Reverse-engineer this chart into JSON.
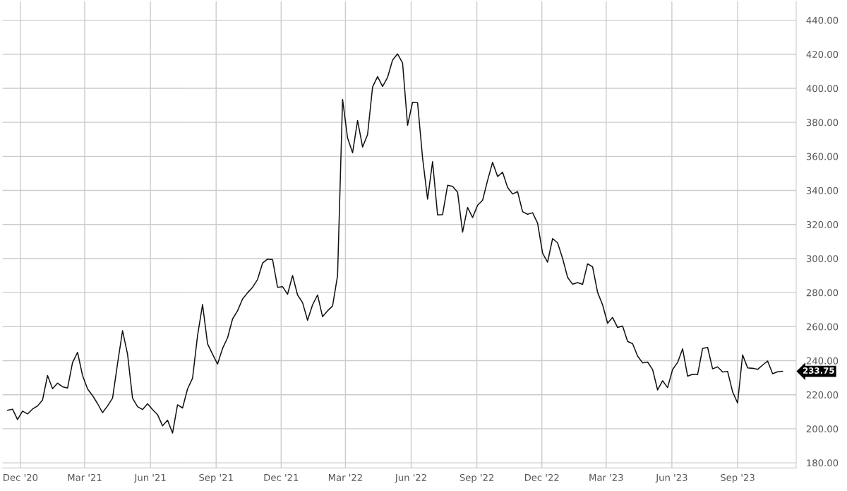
{
  "chart_data": {
    "type": "line",
    "x": [
      "2020-11-13",
      "2020-11-20",
      "2020-11-27",
      "2020-12-04",
      "2020-12-11",
      "2020-12-18",
      "2020-12-25",
      "2021-01-01",
      "2021-01-08",
      "2021-01-15",
      "2021-01-22",
      "2021-01-29",
      "2021-02-05",
      "2021-02-12",
      "2021-02-19",
      "2021-02-26",
      "2021-03-05",
      "2021-03-12",
      "2021-03-19",
      "2021-03-26",
      "2021-04-02",
      "2021-04-09",
      "2021-04-16",
      "2021-04-23",
      "2021-04-30",
      "2021-05-07",
      "2021-05-14",
      "2021-05-21",
      "2021-05-28",
      "2021-06-04",
      "2021-06-11",
      "2021-06-18",
      "2021-06-25",
      "2021-07-02",
      "2021-07-09",
      "2021-07-16",
      "2021-07-23",
      "2021-07-30",
      "2021-08-06",
      "2021-08-13",
      "2021-08-20",
      "2021-08-27",
      "2021-09-03",
      "2021-09-10",
      "2021-09-17",
      "2021-09-24",
      "2021-10-01",
      "2021-10-08",
      "2021-10-15",
      "2021-10-22",
      "2021-10-29",
      "2021-11-05",
      "2021-11-12",
      "2021-11-19",
      "2021-11-26",
      "2021-12-03",
      "2021-12-10",
      "2021-12-17",
      "2021-12-24",
      "2021-12-31",
      "2022-01-07",
      "2022-01-14",
      "2022-01-21",
      "2022-01-28",
      "2022-02-04",
      "2022-02-11",
      "2022-02-18",
      "2022-02-25",
      "2022-03-04",
      "2022-03-11",
      "2022-03-18",
      "2022-03-25",
      "2022-04-01",
      "2022-04-08",
      "2022-04-15",
      "2022-04-22",
      "2022-04-29",
      "2022-05-06",
      "2022-05-13",
      "2022-05-20",
      "2022-05-27",
      "2022-06-03",
      "2022-06-10",
      "2022-06-17",
      "2022-06-24",
      "2022-07-01",
      "2022-07-08",
      "2022-07-15",
      "2022-07-22",
      "2022-07-29",
      "2022-08-05",
      "2022-08-12",
      "2022-08-19",
      "2022-08-26",
      "2022-09-02",
      "2022-09-09",
      "2022-09-16",
      "2022-09-23",
      "2022-09-30",
      "2022-10-07",
      "2022-10-14",
      "2022-10-21",
      "2022-10-28",
      "2022-11-04",
      "2022-11-11",
      "2022-11-18",
      "2022-11-25",
      "2022-12-02",
      "2022-12-09",
      "2022-12-16",
      "2022-12-23",
      "2022-12-30",
      "2023-01-06",
      "2023-01-13",
      "2023-01-20",
      "2023-01-27",
      "2023-02-03",
      "2023-02-10",
      "2023-02-17",
      "2023-02-24",
      "2023-03-03",
      "2023-03-10",
      "2023-03-17",
      "2023-03-24",
      "2023-03-31",
      "2023-04-07",
      "2023-04-14",
      "2023-04-21",
      "2023-04-28",
      "2023-05-05",
      "2023-05-12",
      "2023-05-19",
      "2023-05-26",
      "2023-06-02",
      "2023-06-09",
      "2023-06-16",
      "2023-06-23",
      "2023-06-30",
      "2023-07-07",
      "2023-07-14",
      "2023-07-21",
      "2023-07-28",
      "2023-08-04",
      "2023-08-11",
      "2023-08-18",
      "2023-08-25",
      "2023-09-01",
      "2023-09-08",
      "2023-09-15",
      "2023-09-22",
      "2023-09-29",
      "2023-10-06",
      "2023-10-13",
      "2023-10-20",
      "2023-10-27",
      "2023-11-03"
    ],
    "series": [
      {
        "color": "#111111",
        "values": [
          210.9,
          211.5,
          205.4,
          210.4,
          208.7,
          211.6,
          213.4,
          216.9,
          231.3,
          223.5,
          226.8,
          224.7,
          223.9,
          238.9,
          244.9,
          231.3,
          223.4,
          219.5,
          214.8,
          209.5,
          213.4,
          218.0,
          238.3,
          257.6,
          243.8,
          218.0,
          213.0,
          211.3,
          214.7,
          211.3,
          208.3,
          201.7,
          205.0,
          197.5,
          214.1,
          212.2,
          223.4,
          229.7,
          254.8,
          273.0,
          249.9,
          243.8,
          238.0,
          247.2,
          253.4,
          264.5,
          269.3,
          276.2,
          279.9,
          283.1,
          287.7,
          297.3,
          299.7,
          299.4,
          283.1,
          283.5,
          279.0,
          290.0,
          278.6,
          274.1,
          263.8,
          272.8,
          278.6,
          265.8,
          269.3,
          272.1,
          290.0,
          393.5,
          370.8,
          362.1,
          381.1,
          365.5,
          372.8,
          400.8,
          406.9,
          401.1,
          406.4,
          416.6,
          420.2,
          414.9,
          378.3,
          391.8,
          391.5,
          359.1,
          334.9,
          356.9,
          325.6,
          325.8,
          343.0,
          342.4,
          339.0,
          315.5,
          330.0,
          324.1,
          331.3,
          334.2,
          345.9,
          356.5,
          348.2,
          350.7,
          341.8,
          337.9,
          339.3,
          327.5,
          326.0,
          326.9,
          320.8,
          303.1,
          297.9,
          311.7,
          309.2,
          300.1,
          289.0,
          284.9,
          285.9,
          284.8,
          296.9,
          295.1,
          280.1,
          272.8,
          262.0,
          265.4,
          259.5,
          260.3,
          251.3,
          250.0,
          242.7,
          238.7,
          239.2,
          234.8,
          222.8,
          228.2,
          224.2,
          234.8,
          238.9,
          247.0,
          230.9,
          232.0,
          231.8,
          247.2,
          247.8,
          235.2,
          236.4,
          233.4,
          233.7,
          221.7,
          215.1,
          243.4,
          235.8,
          235.5,
          234.9,
          237.4,
          239.8,
          232.3,
          233.5,
          233.75
        ]
      }
    ],
    "xlim": [
      "2020-11-06",
      "2023-11-22"
    ],
    "xticks": [
      {
        "value": "2020-12-01",
        "label": "Dec '20"
      },
      {
        "value": "2021-03-01",
        "label": "Mar '21"
      },
      {
        "value": "2021-06-01",
        "label": "Jun '21"
      },
      {
        "value": "2021-09-01",
        "label": "Sep '21"
      },
      {
        "value": "2021-12-01",
        "label": "Dec '21"
      },
      {
        "value": "2022-03-01",
        "label": "Mar '22"
      },
      {
        "value": "2022-06-01",
        "label": "Jun '22"
      },
      {
        "value": "2022-09-01",
        "label": "Sep '22"
      },
      {
        "value": "2022-12-01",
        "label": "Dec '22"
      },
      {
        "value": "2023-03-01",
        "label": "Mar '23"
      },
      {
        "value": "2023-06-01",
        "label": "Jun '23"
      },
      {
        "value": "2023-09-01",
        "label": "Sep '23"
      }
    ],
    "ylim": [
      177,
      451
    ],
    "yticks": [
      {
        "value": 180,
        "label": "180.00"
      },
      {
        "value": 200,
        "label": "200.00"
      },
      {
        "value": 220,
        "label": "220.00"
      },
      {
        "value": 240,
        "label": "240.00"
      },
      {
        "value": 260,
        "label": "260.00"
      },
      {
        "value": 280,
        "label": "280.00"
      },
      {
        "value": 300,
        "label": "300.00"
      },
      {
        "value": 320,
        "label": "320.00"
      },
      {
        "value": 340,
        "label": "340.00"
      },
      {
        "value": 360,
        "label": "360.00"
      },
      {
        "value": 380,
        "label": "380.00"
      },
      {
        "value": 400,
        "label": "400.00"
      },
      {
        "value": 420,
        "label": "420.00"
      },
      {
        "value": 440,
        "label": "440.00"
      }
    ],
    "annotations": [
      {
        "text": "233.75",
        "x": "2023-11-03",
        "y": 233.75
      }
    ],
    "grid": true,
    "legend": false,
    "marker": "none",
    "line_style": "solid"
  }
}
